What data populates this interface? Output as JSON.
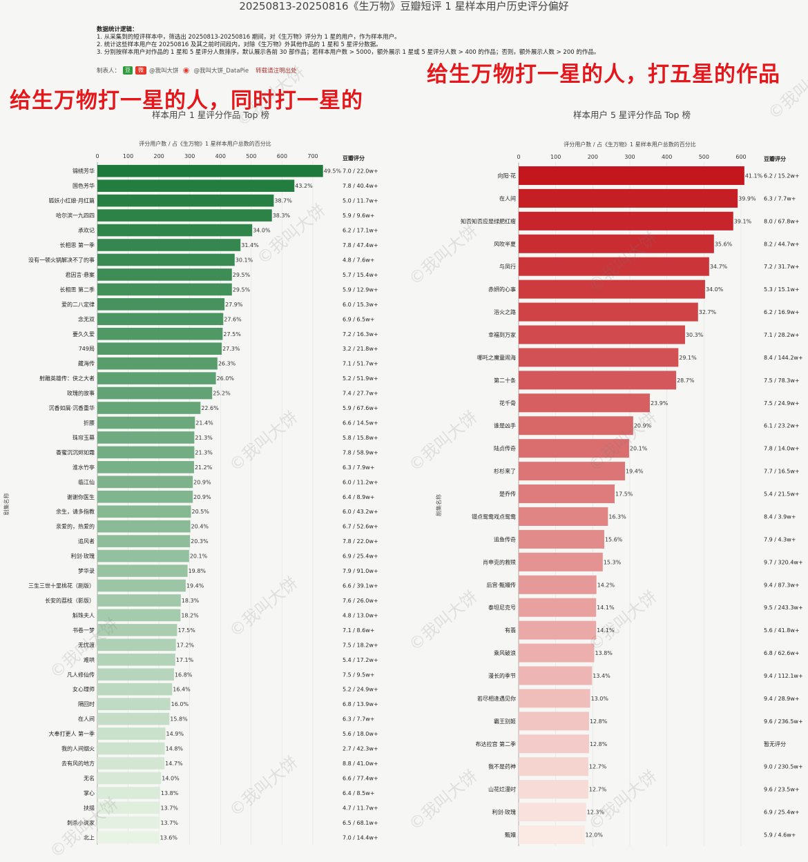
{
  "header": {
    "title": "20250813-20250816《生万物》豆瓣短评 1 星样本用户历史评分偏好",
    "notes_heading": "数据统计逻辑：",
    "notes": [
      "1. 从采集到的短评样本中，筛选出 20250813-20250816 期间，对《生万物》评分为 1 星的用户，作为样本用户。",
      "2. 统计这些样本用户在 20250816 及其之前时间段内，对除《生万物》外其他作品的 1 星和 5 星评分数据。",
      "3. 分别按样本用户对作品的 1 星和 5 星评分人数排序，默认展示各前 30 部作品；若样本用户数 > 5000，额外展示 1 星或 5 星评分人数 > 400 的作品；否则，额外展示人数 > 200 的作品。"
    ],
    "credit_prefix": "制表人：",
    "credit_weibo": "@我叫大饼",
    "credit_wechat": "@我叫大饼_DataPie",
    "credit_hint": "转载请注明出处"
  },
  "overlays": {
    "left": "给生万物打一星的人，同时打一星的",
    "right": "给生万物打一星的人，打五星的作品"
  },
  "watermark": "©我叫大饼",
  "charts": {
    "left": {
      "subtitle": "样本用户 1 星评分作品 Top 榜",
      "xlabel": "评分用户数 / 占《生万物》1 星样本用户总数的百分比",
      "ylabel": "剧集名称",
      "rating_header": "豆瓣评分",
      "colors": [
        "#1e7a3c",
        "#e9f3e5"
      ]
    },
    "right": {
      "subtitle": "样本用户 5 星评分作品 Top 榜",
      "xlabel": "评分用户数 / 占《生万物》1 星样本用户总数的百分比",
      "ylabel": "剧集名称",
      "rating_header": "豆瓣评分",
      "colors": [
        "#c3171d",
        "#fbe9e4"
      ]
    }
  },
  "chart_data": [
    {
      "type": "bar",
      "orientation": "horizontal",
      "xlim": [
        0,
        700
      ],
      "xticks": [
        0,
        100,
        200,
        300,
        400,
        500,
        600,
        700
      ],
      "categories": [
        "锦绣芳华",
        "国色芳华",
        "狐妖小红娘·月红篇",
        "哈尔滨一九四四",
        "承欢记",
        "长相思 第一季",
        "没有一顿火锅解决不了的事",
        "君因言·悬案",
        "长相思 第二季",
        "爱的二八定律",
        "念无双",
        "要久久爱",
        "749局",
        "藏海传",
        "射雕英雄传：侠之大者",
        "玫瑰的故事",
        "沉香如屑·沉香重华",
        "折腰",
        "珠帘玉幕",
        "香蜜沉沉烬如霜",
        "淮水竹亭",
        "临江仙",
        "谢谢你医生",
        "余生，请多指教",
        "亲爱的，热爱的",
        "追风者",
        "利剑·玫瑰",
        "梦华录",
        "三生三世十里桃花（剧版）",
        "长安的荔枝（影版）",
        "斛珠夫人",
        "书卷一梦",
        "无忧渡",
        "难哄",
        "凡人修仙传",
        "女心理师",
        "隔回时",
        "在人间",
        "大奉打更人 第一季",
        "我的人间烟火",
        "去有风的地方",
        "无名",
        "掌心",
        "扶摇",
        "刺杀小说家",
        "北上"
      ],
      "percent": [
        49.5,
        43.2,
        38.7,
        38.3,
        34.0,
        31.4,
        30.1,
        29.5,
        29.5,
        27.9,
        27.6,
        27.5,
        27.3,
        26.3,
        26.0,
        25.2,
        22.6,
        21.4,
        21.3,
        21.3,
        21.2,
        20.9,
        20.9,
        20.5,
        20.4,
        20.3,
        20.1,
        19.8,
        19.4,
        18.3,
        18.2,
        17.5,
        17.2,
        17.1,
        16.8,
        16.4,
        16.0,
        15.8,
        14.9,
        14.8,
        14.7,
        14.0,
        13.8,
        13.7,
        13.7,
        13.6
      ],
      "values": [
        733,
        640,
        573,
        567,
        503,
        465,
        446,
        437,
        437,
        413,
        409,
        407,
        404,
        390,
        385,
        373,
        335,
        317,
        315,
        315,
        314,
        310,
        310,
        304,
        302,
        301,
        298,
        293,
        287,
        271,
        270,
        259,
        255,
        253,
        249,
        243,
        237,
        234,
        221,
        219,
        218,
        207,
        204,
        203,
        203,
        201
      ],
      "ratings": [
        "7.0 / 22.0w+",
        "7.8 / 40.4w+",
        "5.0 / 11.7w+",
        "5.9 / 9.6w+",
        "6.2 / 17.1w+",
        "7.8 / 47.4w+",
        "4.8 / 7.6w+",
        "5.7 / 15.4w+",
        "5.9 / 12.9w+",
        "6.0 / 15.3w+",
        "6.9 / 6.5w+",
        "7.2 / 16.3w+",
        "3.2 / 21.8w+",
        "7.1 / 51.7w+",
        "5.2 / 51.9w+",
        "7.4 / 27.7w+",
        "5.9 / 67.6w+",
        "6.6 / 14.5w+",
        "5.8 / 15.8w+",
        "7.8 / 58.9w+",
        "6.3 / 7.9w+",
        "6.0 / 11.2w+",
        "6.4 / 8.9w+",
        "6.0 / 43.2w+",
        "6.7 / 52.6w+",
        "7.8 / 22.0w+",
        "6.9 / 25.4w+",
        "7.9 / 91.0w+",
        "6.6 / 39.1w+",
        "7.6 / 26.0w+",
        "4.8 / 13.0w+",
        "7.1 / 8.6w+",
        "7.5 / 18.2w+",
        "5.4 / 17.2w+",
        "7.5 / 9.5w+",
        "5.2 / 24.9w+",
        "6.8 / 13.9w+",
        "6.3 / 7.7w+",
        "5.6 / 18.0w+",
        "2.7 / 42.3w+",
        "8.8 / 41.0w+",
        "6.6 / 77.4w+",
        "6.4 / 8.5w+",
        "4.7 / 11.7w+",
        "6.5 / 68.1w+",
        "7.0 / 14.4w+"
      ]
    },
    {
      "type": "bar",
      "orientation": "horizontal",
      "xlim": [
        0,
        600
      ],
      "xticks": [
        0,
        100,
        200,
        300,
        400,
        500,
        600
      ],
      "categories": [
        "向阳·花",
        "在人间",
        "知否知否应是绿肥红瘦",
        "风吹半夏",
        "与凤行",
        "赤妍的心事",
        "浴火之路",
        "幸福到万家",
        "哪吒之魔童闹海",
        "第二十条",
        "花千骨",
        "谁是凶手",
        "陆贞传奇",
        "杉杉来了",
        "楚乔传",
        "错点鸳鸯戏点鸳鸯",
        "追鱼传奇",
        "肖申克的救赎",
        "后宫·甄嬛传",
        "泰坦尼克号",
        "有翡",
        "乘风破浪",
        "漫长的季节",
        "若尽相逢遇见你",
        "霸王别姬",
        "布达拉宫 第二季",
        "我不是药神",
        "山花烂漫时",
        "利剑·玫瑰",
        "甄嬛"
      ],
      "percent": [
        41.1,
        39.9,
        39.1,
        35.6,
        34.7,
        34.0,
        32.7,
        30.3,
        29.1,
        28.7,
        23.9,
        20.9,
        20.1,
        19.4,
        17.5,
        16.3,
        15.6,
        15.3,
        14.2,
        14.1,
        14.1,
        13.8,
        13.4,
        13.0,
        12.8,
        12.8,
        12.7,
        12.7,
        12.3,
        12.0
      ],
      "values": [
        609,
        591,
        579,
        527,
        514,
        503,
        484,
        449,
        431,
        425,
        354,
        309,
        298,
        287,
        259,
        241,
        231,
        227,
        210,
        209,
        209,
        204,
        198,
        193,
        190,
        190,
        188,
        188,
        182,
        178
      ],
      "ratings": [
        "6.2 / 15.2w+",
        "6.3 / 7.7w+",
        "8.0 / 67.8w+",
        "8.2 / 44.7w+",
        "7.2 / 31.7w+",
        "5.3 / 15.1w+",
        "6.2 / 16.9w+",
        "7.1 / 28.2w+",
        "8.4 / 144.2w+",
        "7.5 / 78.3w+",
        "7.5 / 24.9w+",
        "6.1 / 23.2w+",
        "7.8 / 14.0w+",
        "7.7 / 16.5w+",
        "5.4 / 21.5w+",
        "8.4 / 3.9w+",
        "7.9 / 4.3w+",
        "9.7 / 320.4w+",
        "9.4 / 87.3w+",
        "9.5 / 243.3w+",
        "5.6 / 41.8w+",
        "6.8 / 62.6w+",
        "9.4 / 112.1w+",
        "9.4 / 28.9w+",
        "9.6 / 236.5w+",
        "暂无评分",
        "9.0 / 230.5w+",
        "9.6 / 23.5w+",
        "6.9 / 25.4w+",
        "5.9 / 4.6w+"
      ]
    }
  ]
}
